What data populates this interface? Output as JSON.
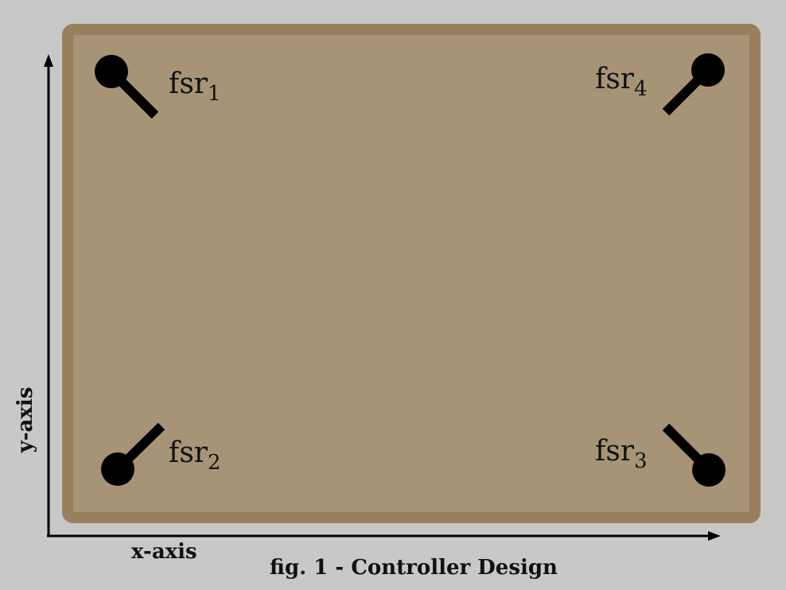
{
  "colors": {
    "background": "#c8c8c8",
    "board_fill": "#a79476",
    "board_border": "#97805b",
    "sensor": "#000000"
  },
  "sensors": [
    {
      "base": "fsr",
      "sub": "1",
      "icon": "force-sensor-icon"
    },
    {
      "base": "fsr",
      "sub": "2",
      "icon": "force-sensor-icon"
    },
    {
      "base": "fsr",
      "sub": "3",
      "icon": "force-sensor-icon"
    },
    {
      "base": "fsr",
      "sub": "4",
      "icon": "force-sensor-icon"
    }
  ],
  "axes": {
    "x_label": "x-axis",
    "y_label": "y-axis"
  },
  "caption": "fig. 1 - Controller Design"
}
